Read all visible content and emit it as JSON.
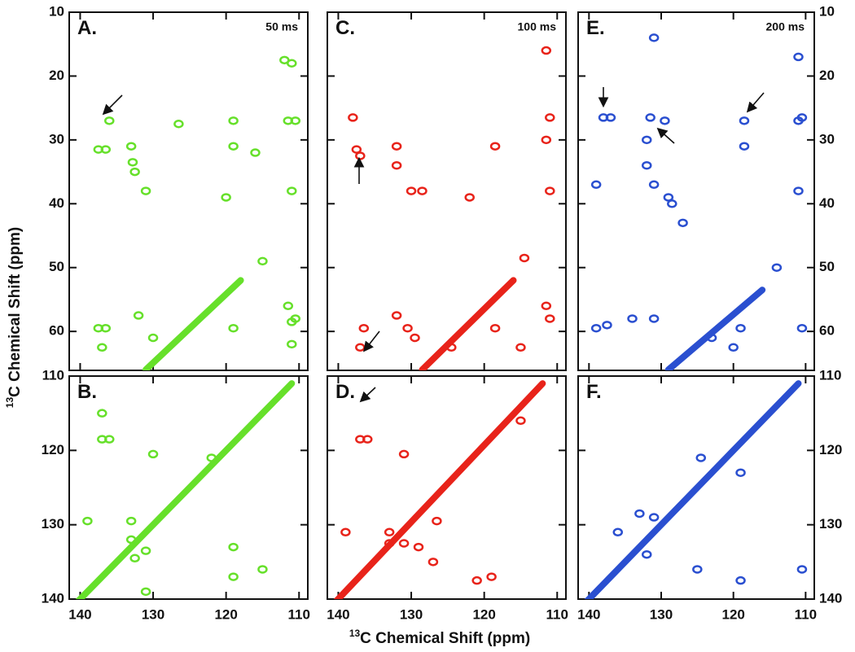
{
  "axis_labels": {
    "x": {
      "sup": "13",
      "text": "C Chemical Shift (ppm)"
    },
    "y": {
      "sup": "13",
      "text": "C Chemical Shift (ppm)"
    }
  },
  "chart_data": [
    {
      "type": "scatter",
      "label": "A.",
      "subtitle": "50 ms",
      "color": "#66e02a",
      "xlim": [
        141.5,
        108.8
      ],
      "xticks": [
        140,
        130,
        120,
        110
      ],
      "ylim": [
        10,
        66.1
      ],
      "yticks": [
        10,
        20,
        30,
        40,
        50,
        60
      ],
      "ytick_side": "left",
      "x": [
        136,
        137.5,
        136.5,
        133,
        132.8,
        132.5,
        131,
        126.5,
        119,
        119,
        116,
        120,
        111,
        112,
        111.5,
        110.5,
        111,
        115,
        137.5,
        136.5,
        137,
        132,
        130,
        119,
        111.5,
        111,
        111,
        110.5
      ],
      "y": [
        27,
        31.5,
        31.5,
        31,
        33.5,
        35,
        38,
        27.5,
        27,
        31,
        32,
        39,
        18,
        17.5,
        27,
        27,
        38,
        49,
        59.5,
        59.5,
        62.5,
        57.5,
        61,
        59.5,
        56,
        58.5,
        62,
        58
      ],
      "diagonal": {
        "x": [
          131,
          118
        ],
        "y": [
          66,
          52
        ]
      }
    },
    {
      "type": "scatter",
      "label": "C.",
      "subtitle": "100 ms",
      "color": "#e8231a",
      "xlim": [
        141.5,
        108.8
      ],
      "xticks": [
        140,
        130,
        120,
        110
      ],
      "ylim": [
        10,
        66.1
      ],
      "yticks": [
        10,
        20,
        30,
        40,
        50,
        60
      ],
      "x": [
        138,
        137.5,
        137,
        132,
        132,
        130,
        128.5,
        122,
        118.5,
        111.5,
        111,
        111.5,
        111,
        114.5,
        136.5,
        137,
        132,
        130.5,
        129.5,
        118.5,
        111.5,
        111,
        124.5,
        115
      ],
      "y": [
        26.5,
        31.5,
        32.5,
        31,
        34,
        38,
        38,
        39,
        31,
        16,
        26.5,
        30,
        38,
        48.5,
        59.5,
        62.5,
        57.5,
        59.5,
        61,
        59.5,
        56,
        58,
        62.5,
        62.5
      ],
      "diagonal": {
        "x": [
          128.5,
          116
        ],
        "y": [
          66,
          52
        ]
      }
    },
    {
      "type": "scatter",
      "label": "E.",
      "subtitle": "200 ms",
      "color": "#2a4fd0",
      "xlim": [
        141.5,
        108.8
      ],
      "xticks": [
        140,
        130,
        120,
        110
      ],
      "ylim": [
        10,
        66.1
      ],
      "yticks": [
        10,
        20,
        30,
        40,
        50,
        60
      ],
      "ytick_side": "right",
      "x": [
        131,
        138,
        137,
        131.5,
        129.5,
        132,
        132,
        131,
        129,
        128.5,
        118.5,
        118.5,
        111,
        111,
        110.5,
        111,
        139,
        127,
        119,
        139,
        137.5,
        134,
        131,
        114,
        110.5,
        123,
        120
      ],
      "y": [
        14,
        26.5,
        26.5,
        26.5,
        27,
        30,
        34,
        37,
        39,
        40,
        27,
        31,
        17,
        27,
        26.5,
        38,
        37,
        43,
        59.5,
        59.5,
        59,
        58,
        58,
        50,
        59.5,
        61,
        62.5
      ],
      "diagonal": {
        "x": [
          129,
          116
        ],
        "y": [
          66,
          53.5
        ]
      }
    },
    {
      "type": "scatter",
      "label": "B.",
      "color": "#66e02a",
      "xlim": [
        141.5,
        108.8
      ],
      "xticks": [
        140,
        130,
        120,
        110
      ],
      "xtick_labels": true,
      "ylim": [
        110,
        140
      ],
      "yticks": [
        110,
        120,
        130,
        140
      ],
      "ytick_side": "left",
      "x": [
        137,
        137,
        136,
        133,
        133,
        131,
        132.5,
        130,
        119,
        119,
        131,
        122,
        115,
        139
      ],
      "y": [
        115,
        118.5,
        118.5,
        129.5,
        132,
        133.5,
        134.5,
        120.5,
        133,
        137,
        139,
        121,
        136,
        129.5
      ],
      "diagonal": {
        "x": [
          140.5,
          111
        ],
        "y": [
          140.5,
          111
        ]
      }
    },
    {
      "type": "scatter",
      "label": "D.",
      "color": "#e8231a",
      "xlim": [
        141.5,
        108.8
      ],
      "xticks": [
        140,
        130,
        120,
        110
      ],
      "xtick_labels": true,
      "ylim": [
        110,
        140
      ],
      "yticks": [
        110,
        120,
        130,
        140
      ],
      "x": [
        137,
        136,
        131,
        133,
        133,
        131,
        129,
        126.5,
        127,
        119,
        121,
        139,
        115
      ],
      "y": [
        118.5,
        118.5,
        120.5,
        131,
        132.5,
        132.5,
        133,
        129.5,
        135,
        137,
        137.5,
        131,
        116
      ],
      "diagonal": {
        "x": [
          140.5,
          112
        ],
        "y": [
          140.5,
          111
        ]
      }
    },
    {
      "type": "scatter",
      "label": "F.",
      "color": "#2a4fd0",
      "xlim": [
        141.5,
        108.8
      ],
      "xticks": [
        140,
        130,
        120,
        110
      ],
      "xtick_labels": true,
      "ylim": [
        110,
        140
      ],
      "yticks": [
        110,
        120,
        130,
        140
      ],
      "ytick_side": "right",
      "x": [
        133,
        131,
        119,
        119,
        125,
        132,
        110.5,
        136,
        124.5
      ],
      "y": [
        128.5,
        129,
        123,
        137.5,
        136,
        134,
        136,
        131,
        121
      ],
      "diagonal": {
        "x": [
          140.5,
          111
        ],
        "y": [
          140.5,
          111
        ]
      }
    }
  ]
}
